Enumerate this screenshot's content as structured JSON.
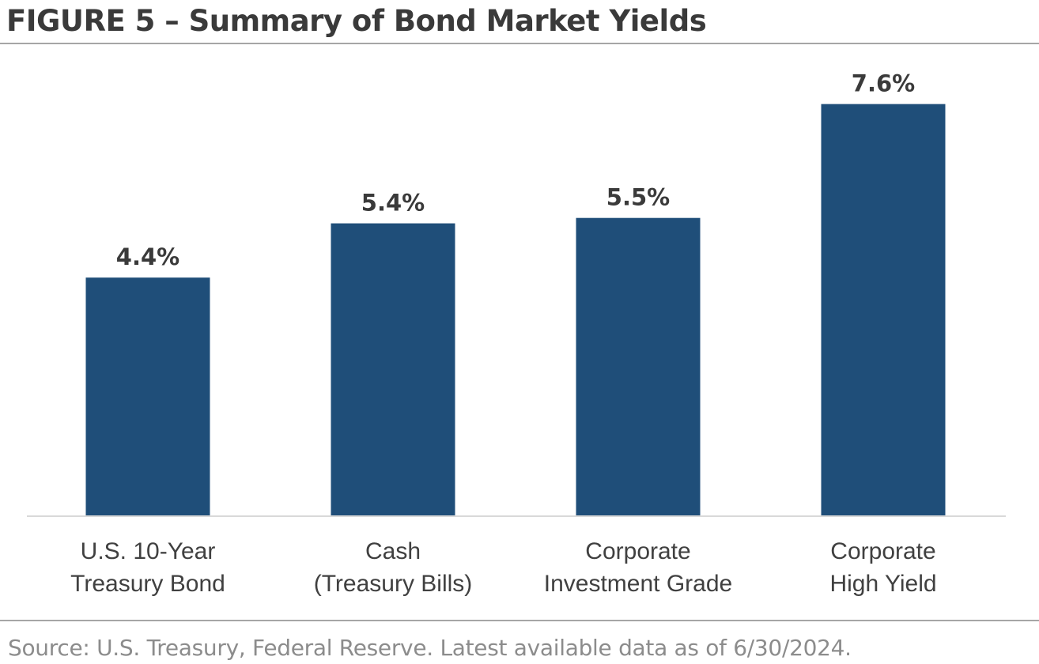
{
  "header": {
    "title": "FIGURE 5 – Summary of Bond Market Yields"
  },
  "footer": {
    "source": "Source: U.S. Treasury, Federal Reserve. Latest available data as of 6/30/2024."
  },
  "colors": {
    "bar": "#1f4e79",
    "data_label": "#3a3a3a",
    "category_label": "#404040",
    "baseline": "#d9d9d9"
  },
  "chart_data": {
    "type": "bar",
    "title": "",
    "xlabel": "",
    "ylabel": "",
    "ylim": [
      0,
      8.4
    ],
    "grid": false,
    "legend": "none",
    "categories": [
      [
        "U.S. 10-Year",
        "Treasury Bond"
      ],
      [
        "Cash",
        "(Treasury Bills)"
      ],
      [
        "Corporate",
        "Investment Grade"
      ],
      [
        "Corporate",
        "High Yield"
      ]
    ],
    "values": [
      4.4,
      5.4,
      5.5,
      7.6
    ],
    "data_labels": [
      "4.4%",
      "5.4%",
      "5.5%",
      "7.6%"
    ]
  }
}
